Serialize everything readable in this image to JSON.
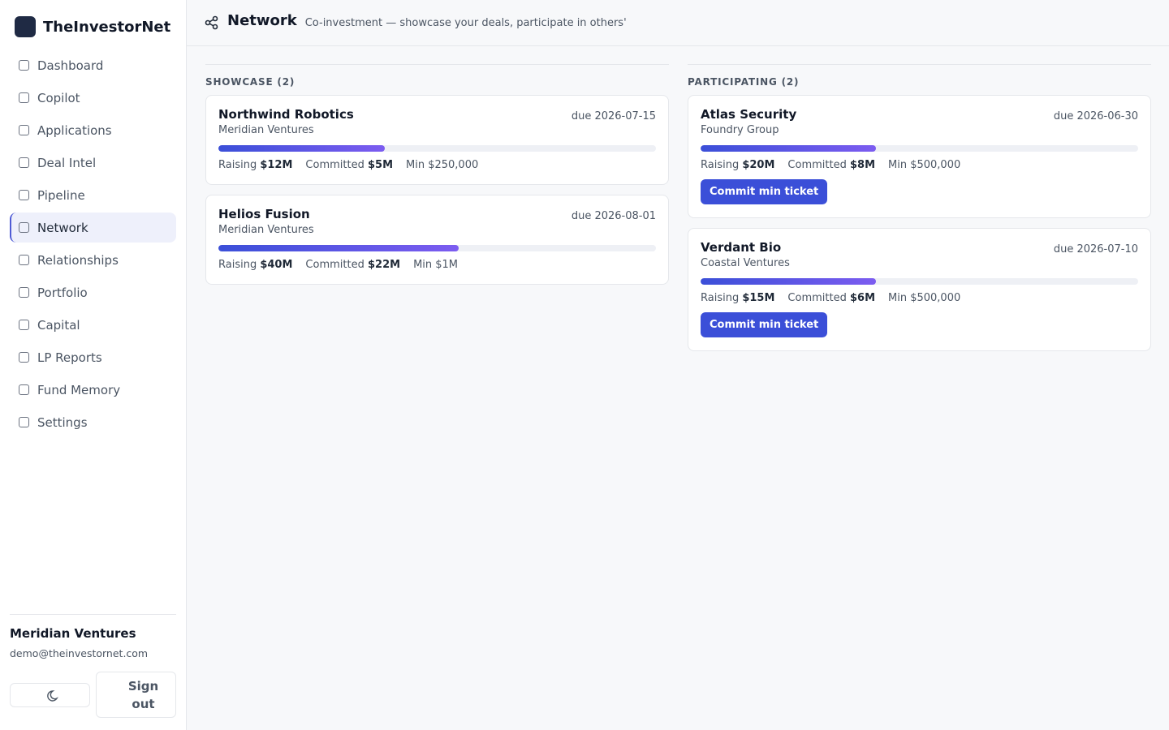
{
  "sidebar": {
    "brand": "TheInvestorNet",
    "nav": [
      "Dashboard",
      "Copilot",
      "Applications",
      "Deal Intel",
      "Pipeline",
      "Network",
      "Relationships",
      "Portfolio",
      "Capital",
      "LP Reports",
      "Fund Memory",
      "Settings"
    ],
    "active": 5,
    "account": {
      "name": "Meridian Ventures",
      "email": "demo@theinvestornet.com"
    },
    "sign_out": "Sign out"
  },
  "header": {
    "title": "Network",
    "subtitle": "Co-investment — showcase your deals, participate in others'"
  },
  "sections": [
    {
      "heading": "SHOWCASE (2)",
      "deals": [
        {
          "name": "Northwind Robotics",
          "org": "Meridian Ventures",
          "due": "due 2026-07-15",
          "progress": 38,
          "raising_label": "Raising",
          "raising": "$12M",
          "committed_label": "Committed",
          "committed": "$5M",
          "min": "Min $250,000"
        },
        {
          "name": "Helios Fusion",
          "org": "Meridian Ventures",
          "due": "due 2026-08-01",
          "progress": 55,
          "raising_label": "Raising",
          "raising": "$40M",
          "committed_label": "Committed",
          "committed": "$22M",
          "min": "Min $1M"
        }
      ]
    },
    {
      "heading": "PARTICIPATING (2)",
      "deals": [
        {
          "name": "Atlas Security",
          "org": "Foundry Group",
          "due": "due 2026-06-30",
          "progress": 40,
          "raising_label": "Raising",
          "raising": "$20M",
          "committed_label": "Committed",
          "committed": "$8M",
          "min": "Min $500,000",
          "action": "Commit min ticket"
        },
        {
          "name": "Verdant Bio",
          "org": "Coastal Ventures",
          "due": "due 2026-07-10",
          "progress": 40,
          "raising_label": "Raising",
          "raising": "$15M",
          "committed_label": "Committed",
          "committed": "$6M",
          "min": "Min $500,000",
          "action": "Commit min ticket"
        }
      ]
    }
  ]
}
